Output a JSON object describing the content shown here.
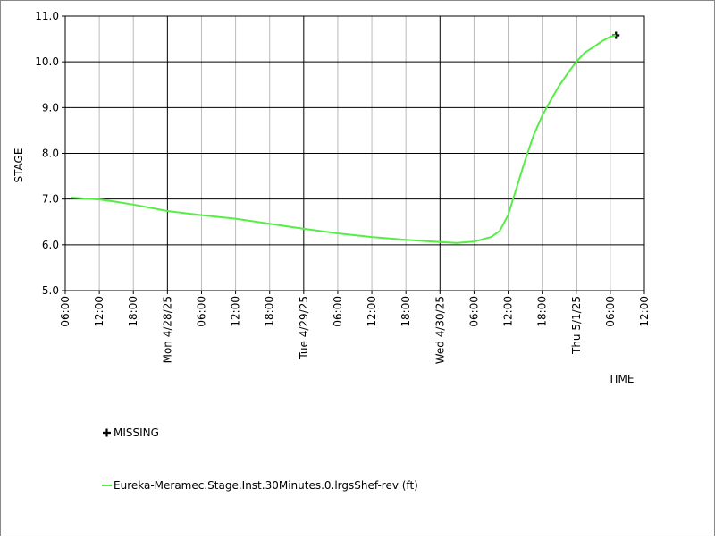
{
  "chart_data": {
    "type": "line",
    "ylabel": "STAGE",
    "xlabel": "TIME",
    "xlim": [
      "2025-04-27T06:00",
      "2025-05-01T12:00"
    ],
    "xticks": [
      {
        "value": "2025-04-27T06:00",
        "label": "06:00"
      },
      {
        "value": "2025-04-27T12:00",
        "label": "12:00"
      },
      {
        "value": "2025-04-27T18:00",
        "label": "18:00"
      },
      {
        "value": "2025-04-28T00:00",
        "label": "Mon 4/28/25"
      },
      {
        "value": "2025-04-28T06:00",
        "label": "06:00"
      },
      {
        "value": "2025-04-28T12:00",
        "label": "12:00"
      },
      {
        "value": "2025-04-28T18:00",
        "label": "18:00"
      },
      {
        "value": "2025-04-29T00:00",
        "label": "Tue 4/29/25"
      },
      {
        "value": "2025-04-29T06:00",
        "label": "06:00"
      },
      {
        "value": "2025-04-29T12:00",
        "label": "12:00"
      },
      {
        "value": "2025-04-29T18:00",
        "label": "18:00"
      },
      {
        "value": "2025-04-30T00:00",
        "label": "Wed 4/30/25"
      },
      {
        "value": "2025-04-30T06:00",
        "label": "06:00"
      },
      {
        "value": "2025-04-30T12:00",
        "label": "12:00"
      },
      {
        "value": "2025-04-30T18:00",
        "label": "18:00"
      },
      {
        "value": "2025-05-01T00:00",
        "label": "Thu 5/1/25"
      },
      {
        "value": "2025-05-01T06:00",
        "label": "06:00"
      },
      {
        "value": "2025-05-01T12:00",
        "label": "12:00"
      }
    ],
    "ylim": [
      5,
      11
    ],
    "yticks": [
      {
        "value": 5,
        "label": "5.0"
      },
      {
        "value": 6,
        "label": "6.0"
      },
      {
        "value": 7,
        "label": "7.0"
      },
      {
        "value": 8,
        "label": "8.0"
      },
      {
        "value": 9,
        "label": "9.0"
      },
      {
        "value": 10,
        "label": "10.0"
      },
      {
        "value": 11,
        "label": "11.0"
      }
    ],
    "grid": true,
    "series": [
      {
        "name": "MISSING",
        "color": "#000000",
        "marker": "plus",
        "x": [
          "2025-05-01T07:00"
        ],
        "values": [
          10.58
        ]
      },
      {
        "name": "Eureka-Meramec.Stage.Inst.30Minutes.0.lrgsShef-rev (ft)",
        "color": "#55ee44",
        "x": [
          "2025-04-27T07:00",
          "2025-04-27T12:00",
          "2025-04-27T15:00",
          "2025-04-27T18:00",
          "2025-04-28T00:00",
          "2025-04-28T06:00",
          "2025-04-28T12:00",
          "2025-04-28T18:00",
          "2025-04-29T00:00",
          "2025-04-29T06:00",
          "2025-04-29T12:00",
          "2025-04-29T18:00",
          "2025-04-30T00:00",
          "2025-04-30T03:00",
          "2025-04-30T06:00",
          "2025-04-30T09:00",
          "2025-04-30T10:30",
          "2025-04-30T12:00",
          "2025-04-30T13:30",
          "2025-04-30T15:00",
          "2025-04-30T16:30",
          "2025-04-30T18:00",
          "2025-04-30T19:30",
          "2025-04-30T21:00",
          "2025-04-30T22:30",
          "2025-05-01T00:00",
          "2025-05-01T01:30",
          "2025-05-01T03:00",
          "2025-05-01T04:30",
          "2025-05-01T06:00",
          "2025-05-01T07:00"
        ],
        "values": [
          7.03,
          6.99,
          6.94,
          6.88,
          6.74,
          6.65,
          6.57,
          6.46,
          6.35,
          6.25,
          6.17,
          6.11,
          6.06,
          6.04,
          6.07,
          6.17,
          6.3,
          6.65,
          7.25,
          7.85,
          8.4,
          8.82,
          9.16,
          9.48,
          9.75,
          10.0,
          10.2,
          10.32,
          10.45,
          10.55,
          10.58
        ]
      }
    ]
  }
}
